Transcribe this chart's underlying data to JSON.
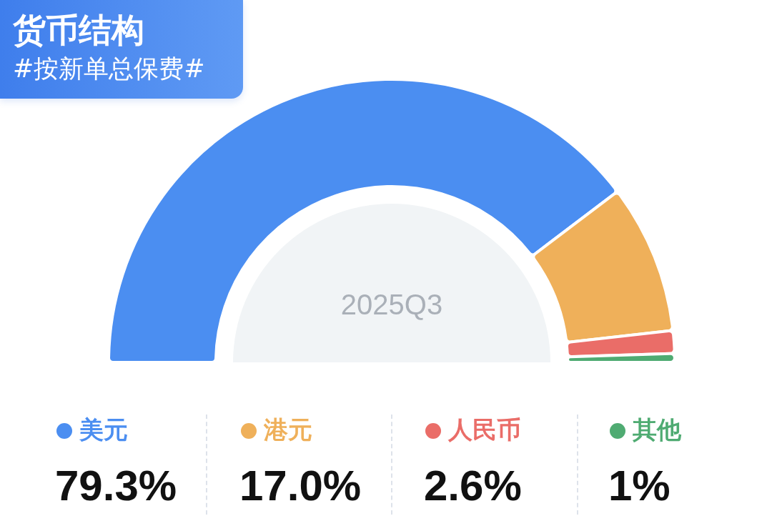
{
  "chart_data": {
    "type": "donut",
    "title": "货币结构",
    "subtitle": "#按新单总保费#",
    "categories": [
      "美元",
      "港元",
      "人民币",
      "其他"
    ],
    "values": [
      79.3,
      17.0,
      2.6,
      1
    ],
    "colors": [
      "#4b8ef1",
      "#efb05a",
      "#ea6d68",
      "#4fab72"
    ],
    "value_labels": [
      "79.3%",
      "17.0%",
      "2.6%",
      "1%"
    ],
    "annotations": [
      "2025Q3"
    ],
    "legend": "bottom"
  }
}
